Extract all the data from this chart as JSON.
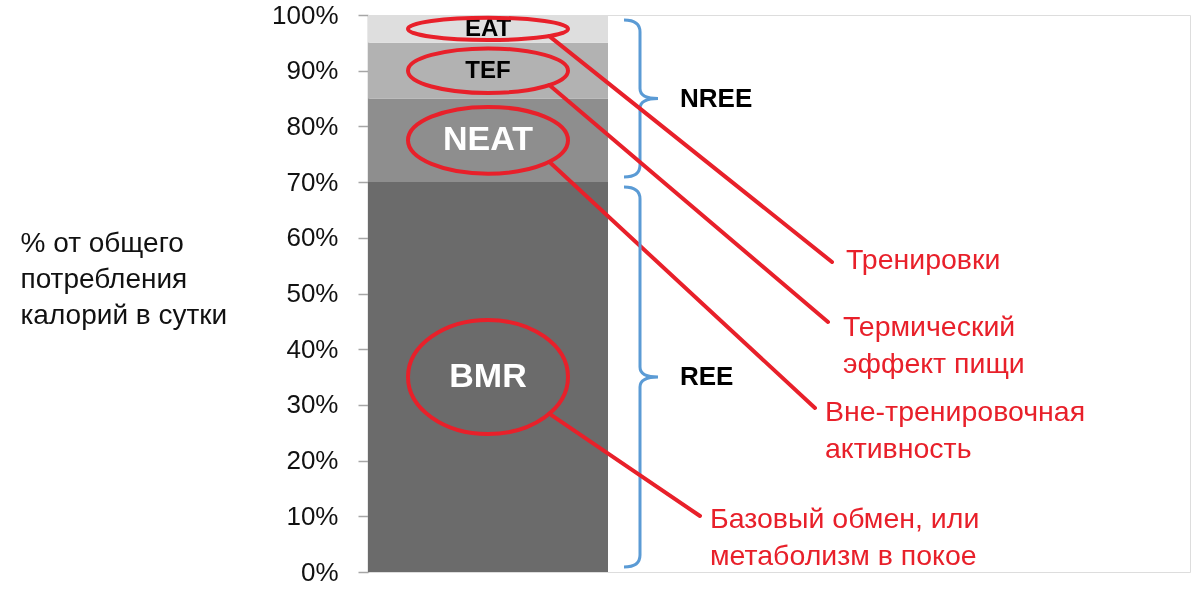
{
  "chart_data": {
    "type": "bar",
    "stacked": true,
    "ylabel": "% от общего\nпотребления\nкалорий в сутки",
    "categories": [
      null
    ],
    "series": [
      {
        "name": "BMR",
        "color": "#6b6b6b",
        "values": [
          70
        ]
      },
      {
        "name": "NEAT",
        "color": "#8e8e8e",
        "values": [
          15
        ]
      },
      {
        "name": "TEF",
        "color": "#b2b2b2",
        "values": [
          10
        ]
      },
      {
        "name": "EAT",
        "color": "#dedede",
        "values": [
          5
        ]
      }
    ],
    "ylim": [
      0,
      100
    ],
    "yticks": [
      {
        "value": 0,
        "label": "0%"
      },
      {
        "value": 10,
        "label": "10%"
      },
      {
        "value": 20,
        "label": "20%"
      },
      {
        "value": 30,
        "label": "30%"
      },
      {
        "value": 40,
        "label": "40%"
      },
      {
        "value": 50,
        "label": "50%"
      },
      {
        "value": 60,
        "label": "60%"
      },
      {
        "value": 70,
        "label": "70%"
      },
      {
        "value": 80,
        "label": "80%"
      },
      {
        "value": 90,
        "label": "90%"
      },
      {
        "value": 100,
        "label": "100%"
      }
    ],
    "annotations": [
      "NREE",
      "Тренировки",
      "Термический\nэффект пищи",
      "Вне-тренировочная\nактивность",
      "REE",
      "Базовый обмен, или\nметаболизм в покое"
    ]
  }
}
